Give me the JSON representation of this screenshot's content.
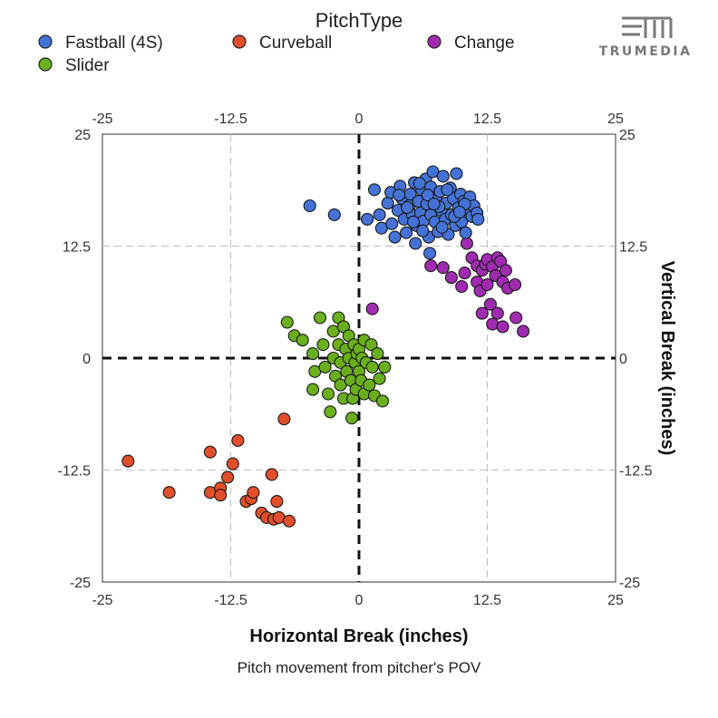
{
  "logo": {
    "text": "TRUMEDIA",
    "color": "#7a7a7a"
  },
  "legend": {
    "title": "PitchType",
    "items": [
      {
        "label": "Fastball (4S)",
        "color": "#4472d6"
      },
      {
        "label": "Curveball",
        "color": "#e04e2c"
      },
      {
        "label": "Change",
        "color": "#a12bb0"
      },
      {
        "label": "Slider",
        "color": "#6aaf1e"
      }
    ]
  },
  "caption": "Pitch movement from pitcher's POV",
  "chart_data": {
    "type": "scatter",
    "xlabel": "Horizontal Break (inches)",
    "ylabel": "Vertical Break (inches)",
    "xlim": [
      -25,
      25
    ],
    "ylim": [
      -25,
      25
    ],
    "xticks": [
      "-25",
      "-12.5",
      "0",
      "12.5",
      "25"
    ],
    "yticks": [
      "25",
      "12.5",
      "0",
      "-12.5",
      "-25"
    ],
    "grid": true,
    "legend_position": "top",
    "series": [
      {
        "name": "Curveball",
        "color": "#e04e2c",
        "points": [
          [
            -22.5,
            -11.5
          ],
          [
            -18.5,
            -15
          ],
          [
            -14.5,
            -10.5
          ],
          [
            -14.5,
            -15
          ],
          [
            -13.5,
            -14.5
          ],
          [
            -13.5,
            -15.3
          ],
          [
            -12.8,
            -13.3
          ],
          [
            -12.3,
            -11.8
          ],
          [
            -11.8,
            -9.2
          ],
          [
            -11,
            -16
          ],
          [
            -10.5,
            -15.7
          ],
          [
            -10.3,
            -15
          ],
          [
            -9.5,
            -17.3
          ],
          [
            -9,
            -17.8
          ],
          [
            -8.5,
            -13
          ],
          [
            -8.3,
            -18
          ],
          [
            -8,
            -16
          ],
          [
            -7.8,
            -17.8
          ],
          [
            -7.3,
            -6.8
          ],
          [
            -6.8,
            -18.2
          ]
        ]
      },
      {
        "name": "Slider",
        "color": "#6aaf1e",
        "points": [
          [
            -7,
            4
          ],
          [
            -6.3,
            2.5
          ],
          [
            -5.5,
            2
          ],
          [
            -4.5,
            0.5
          ],
          [
            -4.3,
            -1.5
          ],
          [
            -4.5,
            -3.5
          ],
          [
            -3.8,
            4.5
          ],
          [
            -3.5,
            1.5
          ],
          [
            -3.3,
            -1
          ],
          [
            -3,
            -4
          ],
          [
            -2.8,
            -6
          ],
          [
            -2.5,
            3
          ],
          [
            -2.5,
            0
          ],
          [
            -2.3,
            -2
          ],
          [
            -2,
            4.5
          ],
          [
            -2,
            1.5
          ],
          [
            -1.8,
            -0.5
          ],
          [
            -1.8,
            -3
          ],
          [
            -1.5,
            3.5
          ],
          [
            -1.5,
            -4.5
          ],
          [
            -1.3,
            1
          ],
          [
            -1.2,
            -1.5
          ],
          [
            -1,
            2.5
          ],
          [
            -1,
            0
          ],
          [
            -0.8,
            -2.5
          ],
          [
            -0.6,
            -4.5
          ],
          [
            -0.5,
            1.5
          ],
          [
            -0.4,
            -0.5
          ],
          [
            -0.3,
            -3.5
          ],
          [
            -0.2,
            0.5
          ],
          [
            0,
            -1.5
          ],
          [
            0,
            1
          ],
          [
            0.2,
            -2.5
          ],
          [
            0.3,
            0
          ],
          [
            0.5,
            -4
          ],
          [
            0.5,
            2
          ],
          [
            0.7,
            -0.5
          ],
          [
            -0.7,
            -6.7
          ],
          [
            1,
            -3
          ],
          [
            1.2,
            1.5
          ],
          [
            1.3,
            -1
          ],
          [
            1.5,
            -4.2
          ],
          [
            1.8,
            0.5
          ],
          [
            2,
            -2.3
          ],
          [
            2.3,
            -4.8
          ],
          [
            2.5,
            -1
          ]
        ]
      },
      {
        "name": "Change",
        "color": "#a12bb0",
        "points": [
          [
            1.3,
            5.5
          ],
          [
            7,
            10.3
          ],
          [
            8.2,
            10.1
          ],
          [
            9,
            9
          ],
          [
            10,
            8
          ],
          [
            10.3,
            9.5
          ],
          [
            10.5,
            12.8
          ],
          [
            11,
            11.2
          ],
          [
            11.5,
            8.5
          ],
          [
            11.5,
            10.3
          ],
          [
            11.8,
            7.5
          ],
          [
            12,
            9.8
          ],
          [
            12,
            5
          ],
          [
            12.3,
            10.5
          ],
          [
            12.5,
            11
          ],
          [
            12.5,
            8.2
          ],
          [
            12.8,
            6
          ],
          [
            13,
            10.2
          ],
          [
            13,
            3.8
          ],
          [
            13.3,
            9.2
          ],
          [
            13.5,
            11.2
          ],
          [
            13.5,
            5
          ],
          [
            13.8,
            10.8
          ],
          [
            14,
            8.5
          ],
          [
            14,
            3.5
          ],
          [
            14.3,
            9.8
          ],
          [
            14.5,
            7.8
          ],
          [
            15.2,
            8.2
          ],
          [
            15.3,
            4.5
          ],
          [
            16,
            3
          ]
        ]
      },
      {
        "name": "Fastball (4S)",
        "color": "#4472d6",
        "points": [
          [
            -4.8,
            17
          ],
          [
            -2.4,
            16
          ],
          [
            0.8,
            15.5
          ],
          [
            1.5,
            18.8
          ],
          [
            2,
            16
          ],
          [
            2.2,
            14.5
          ],
          [
            2.8,
            17.3
          ],
          [
            3.1,
            18.5
          ],
          [
            3.2,
            15
          ],
          [
            3.5,
            13.5
          ],
          [
            3.8,
            16.5
          ],
          [
            4,
            19.2
          ],
          [
            4.2,
            17.8
          ],
          [
            4.4,
            15.5
          ],
          [
            4.6,
            14
          ],
          [
            4.9,
            17
          ],
          [
            5,
            18.3
          ],
          [
            5.2,
            16
          ],
          [
            5.4,
            19.6
          ],
          [
            5.6,
            14.8
          ],
          [
            5.8,
            17.5
          ],
          [
            5.5,
            12.8
          ],
          [
            6,
            16.2
          ],
          [
            6.1,
            18.8
          ],
          [
            6.3,
            15.3
          ],
          [
            6.5,
            20
          ],
          [
            6.6,
            17.2
          ],
          [
            6.8,
            13.5
          ],
          [
            7,
            19.1
          ],
          [
            7,
            16
          ],
          [
            7.2,
            20.8
          ],
          [
            7.4,
            15.2
          ],
          [
            7.5,
            17.8
          ],
          [
            7.7,
            14.1
          ],
          [
            7.9,
            18.6
          ],
          [
            8,
            16.5
          ],
          [
            8.2,
            20.3
          ],
          [
            8.4,
            15.5
          ],
          [
            8.5,
            17.3
          ],
          [
            8.7,
            13.8
          ],
          [
            8.9,
            19
          ],
          [
            9,
            16
          ],
          [
            9.2,
            17.8
          ],
          [
            9.4,
            14.8
          ],
          [
            9.5,
            20.6
          ],
          [
            9.7,
            16.8
          ],
          [
            9.9,
            18.3
          ],
          [
            10,
            15.2
          ],
          [
            10.2,
            17.5
          ],
          [
            10.4,
            14
          ],
          [
            10.6,
            16.5
          ],
          [
            10.8,
            18
          ],
          [
            11,
            15.8
          ],
          [
            11.2,
            17
          ],
          [
            11.5,
            16.2
          ],
          [
            11.6,
            15.5
          ],
          [
            6.9,
            11.7
          ],
          [
            3.9,
            18.2
          ],
          [
            4.7,
            16.8
          ],
          [
            5.3,
            15.2
          ],
          [
            6.7,
            18.2
          ],
          [
            7.8,
            16.9
          ],
          [
            8.6,
            18.8
          ],
          [
            9.3,
            15.8
          ],
          [
            10.3,
            17.2
          ],
          [
            5.9,
            19.5
          ],
          [
            6.2,
            14.2
          ],
          [
            7.3,
            17.2
          ],
          [
            8.1,
            14.6
          ],
          [
            9.8,
            16.3
          ]
        ]
      }
    ]
  }
}
